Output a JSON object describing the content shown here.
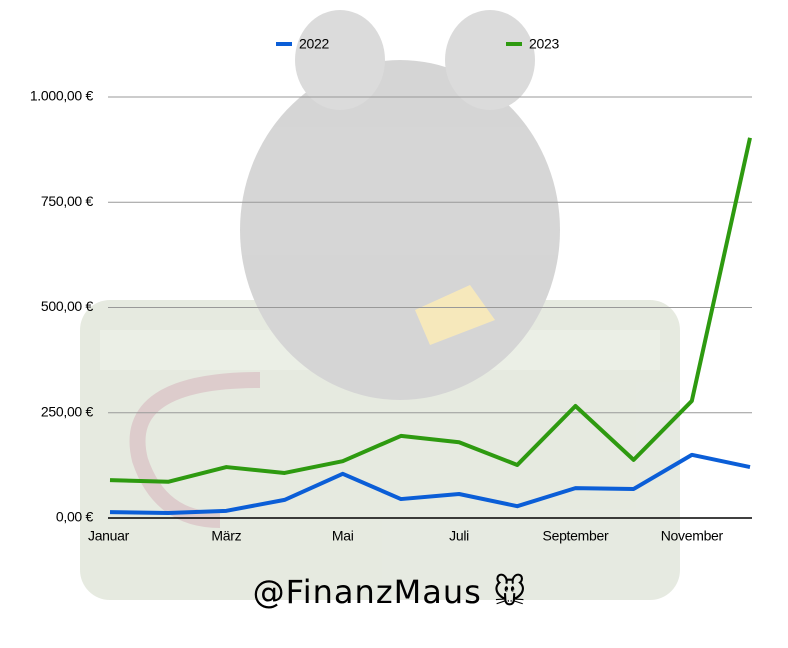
{
  "chart_data": {
    "type": "line",
    "categories": [
      "Januar",
      null,
      "März",
      null,
      "Mai",
      null,
      "Juli",
      null,
      "September",
      null,
      "November",
      null
    ],
    "series": [
      {
        "name": "2022",
        "color": "#0b5ed7",
        "values": [
          14,
          12,
          17,
          43,
          105,
          45,
          57,
          28,
          71,
          69,
          150,
          121
        ]
      },
      {
        "name": "2023",
        "color": "#2e9a10",
        "values": [
          90,
          86,
          121,
          107,
          135,
          195,
          180,
          126,
          266,
          138,
          278,
          903
        ]
      }
    ],
    "ylim": [
      0,
      1000
    ],
    "yticks": [
      {
        "value": 0,
        "label": "0,00 €"
      },
      {
        "value": 250,
        "label": "250,00 €"
      },
      {
        "value": 500,
        "label": "500,00 €"
      },
      {
        "value": 750,
        "label": "750,00 €"
      },
      {
        "value": 1000,
        "label": "1.000,00 €"
      }
    ],
    "grid": true,
    "legend": "top",
    "watermark": "@FinanzMaus 🐭"
  }
}
